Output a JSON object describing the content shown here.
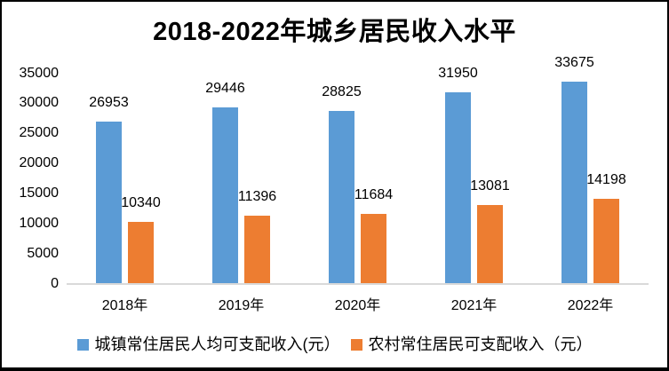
{
  "window": {
    "background": "#ffffff",
    "border_color": "#000000"
  },
  "chart_data": {
    "type": "bar",
    "title": "2018-2022年城乡居民收入水平",
    "categories": [
      "2018年",
      "2019年",
      "2020年",
      "2021年",
      "2022年"
    ],
    "series": [
      {
        "name": "城镇常住居民人均可支配收入(元）",
        "color": "#5B9BD5",
        "values": [
          26953,
          29446,
          28825,
          31950,
          33675
        ]
      },
      {
        "name": "农村常住居民可支配收入（元）",
        "color": "#ED7D31",
        "values": [
          10340,
          11396,
          11684,
          13081,
          14198
        ]
      }
    ],
    "xlabel": "",
    "ylabel": "",
    "ylim": [
      0,
      35000
    ],
    "yticks": [
      35000,
      30000,
      25000,
      20000,
      15000,
      10000,
      5000,
      0
    ],
    "grid": false,
    "data_labels": true,
    "legend_position": "bottom",
    "axis_line_color": "#D9D9D9",
    "text_color": "#000000"
  }
}
